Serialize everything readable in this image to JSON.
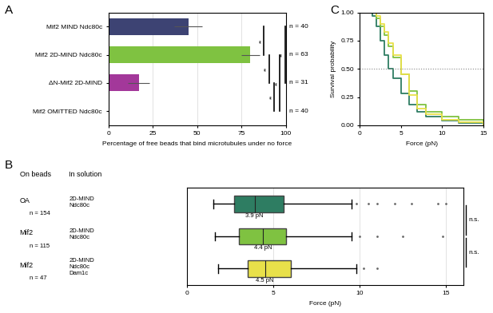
{
  "chart_data": [
    {
      "type": "bar",
      "title": "A",
      "orientation": "horizontal",
      "grid": true,
      "categories": [
        "Mif2 MIND Ndc80c",
        "Mif2 2D-MIND Ndc80c",
        "ΔN-Mif2 2D-MIND",
        "Mif2 OMITTED Ndc80c"
      ],
      "values": [
        45,
        80,
        17,
        0
      ],
      "errors": [
        8,
        5,
        6,
        0
      ],
      "colors": [
        "#3d4373",
        "#7fc241",
        "#a3389a",
        "#888888"
      ],
      "n_labels": [
        "n = 40",
        "n = 63",
        "n = 31",
        "n = 40"
      ],
      "significance": [
        {
          "pair": [
            0,
            1
          ],
          "label": "**"
        },
        {
          "pair": [
            1,
            2
          ],
          "label": "**"
        },
        {
          "pair": [
            2,
            3
          ],
          "label": "**"
        },
        {
          "pair": [
            1,
            3
          ],
          "label": "**"
        },
        {
          "pair": [
            0,
            2
          ],
          "label": "**"
        }
      ],
      "x_label": "Percentage of free beads that bind microtubules under no force",
      "xlim": [
        0,
        100
      ],
      "xticks": [
        0,
        25,
        50,
        75,
        100
      ]
    },
    {
      "type": "box",
      "title": "B",
      "orientation": "horizontal",
      "grid": true,
      "headers": [
        "On beads",
        "In solution"
      ],
      "categories": [
        "OA",
        "Mif2",
        "Mif2"
      ],
      "in_solution": [
        [
          "2D-MIND",
          "Ndc80c"
        ],
        [
          "2D-MIND",
          "Ndc80c"
        ],
        [
          "2D-MIND",
          "Ndc80c",
          "Dam1c"
        ]
      ],
      "n_labels": [
        "n = 154",
        "n = 115",
        "n = 47"
      ],
      "colors": [
        "#2e7d62",
        "#7fc241",
        "#e8e04a"
      ],
      "q1": [
        2.7,
        3.0,
        3.5
      ],
      "median": [
        3.9,
        4.4,
        4.5
      ],
      "q3": [
        5.6,
        5.7,
        6.0
      ],
      "whisker_low": [
        1.5,
        1.6,
        1.8
      ],
      "whisker_high": [
        9.5,
        9.5,
        9.8
      ],
      "outliers": [
        [
          9.8,
          10.5,
          11,
          12,
          13,
          14.5,
          15
        ],
        [
          10,
          11,
          12.5,
          14.8
        ],
        [
          10.2,
          11
        ]
      ],
      "median_labels": [
        "3.9 pN",
        "4.4 pN",
        "4.5 pN"
      ],
      "significance": [
        {
          "pair": [
            0,
            1
          ],
          "label": "n.s."
        },
        {
          "pair": [
            1,
            2
          ],
          "label": "n.s."
        }
      ],
      "x_label": "Force (pN)",
      "xlim": [
        0,
        16
      ],
      "xticks": [
        0,
        5,
        10,
        15
      ]
    },
    {
      "type": "line",
      "title": "C",
      "line_style": "steps",
      "x": [
        0,
        1.5,
        2,
        2.5,
        3,
        3.5,
        4,
        5,
        6,
        7,
        8,
        10,
        12,
        15
      ],
      "series": [
        {
          "color": "#2e7d62",
          "values": [
            1,
            0.97,
            0.88,
            0.75,
            0.62,
            0.5,
            0.42,
            0.28,
            0.18,
            0.12,
            0.08,
            0.04,
            0.02,
            0.0
          ]
        },
        {
          "color": "#7fc241",
          "values": [
            1,
            1,
            0.95,
            0.88,
            0.8,
            0.7,
            0.6,
            0.45,
            0.3,
            0.18,
            0.12,
            0.08,
            0.05,
            0.03
          ]
        },
        {
          "color": "#e8e04a",
          "values": [
            1,
            1,
            0.97,
            0.9,
            0.83,
            0.73,
            0.62,
            0.45,
            0.27,
            0.15,
            0.1,
            0.05,
            0.03,
            0.0
          ]
        }
      ],
      "reference_line": 0.5,
      "x_label": "Force (pN)",
      "y_label": "Survival probability",
      "xlim": [
        0,
        15
      ],
      "xticks": [
        0,
        5,
        10,
        15
      ],
      "ylim": [
        0,
        1
      ],
      "yticks": [
        {
          "value": 0,
          "label": "0.00"
        },
        {
          "value": 0.25,
          "label": "0.25"
        },
        {
          "value": 0.5,
          "label": "0.50"
        },
        {
          "value": 0.75,
          "label": "0.75"
        },
        {
          "value": 1,
          "label": "1.00"
        }
      ]
    }
  ]
}
